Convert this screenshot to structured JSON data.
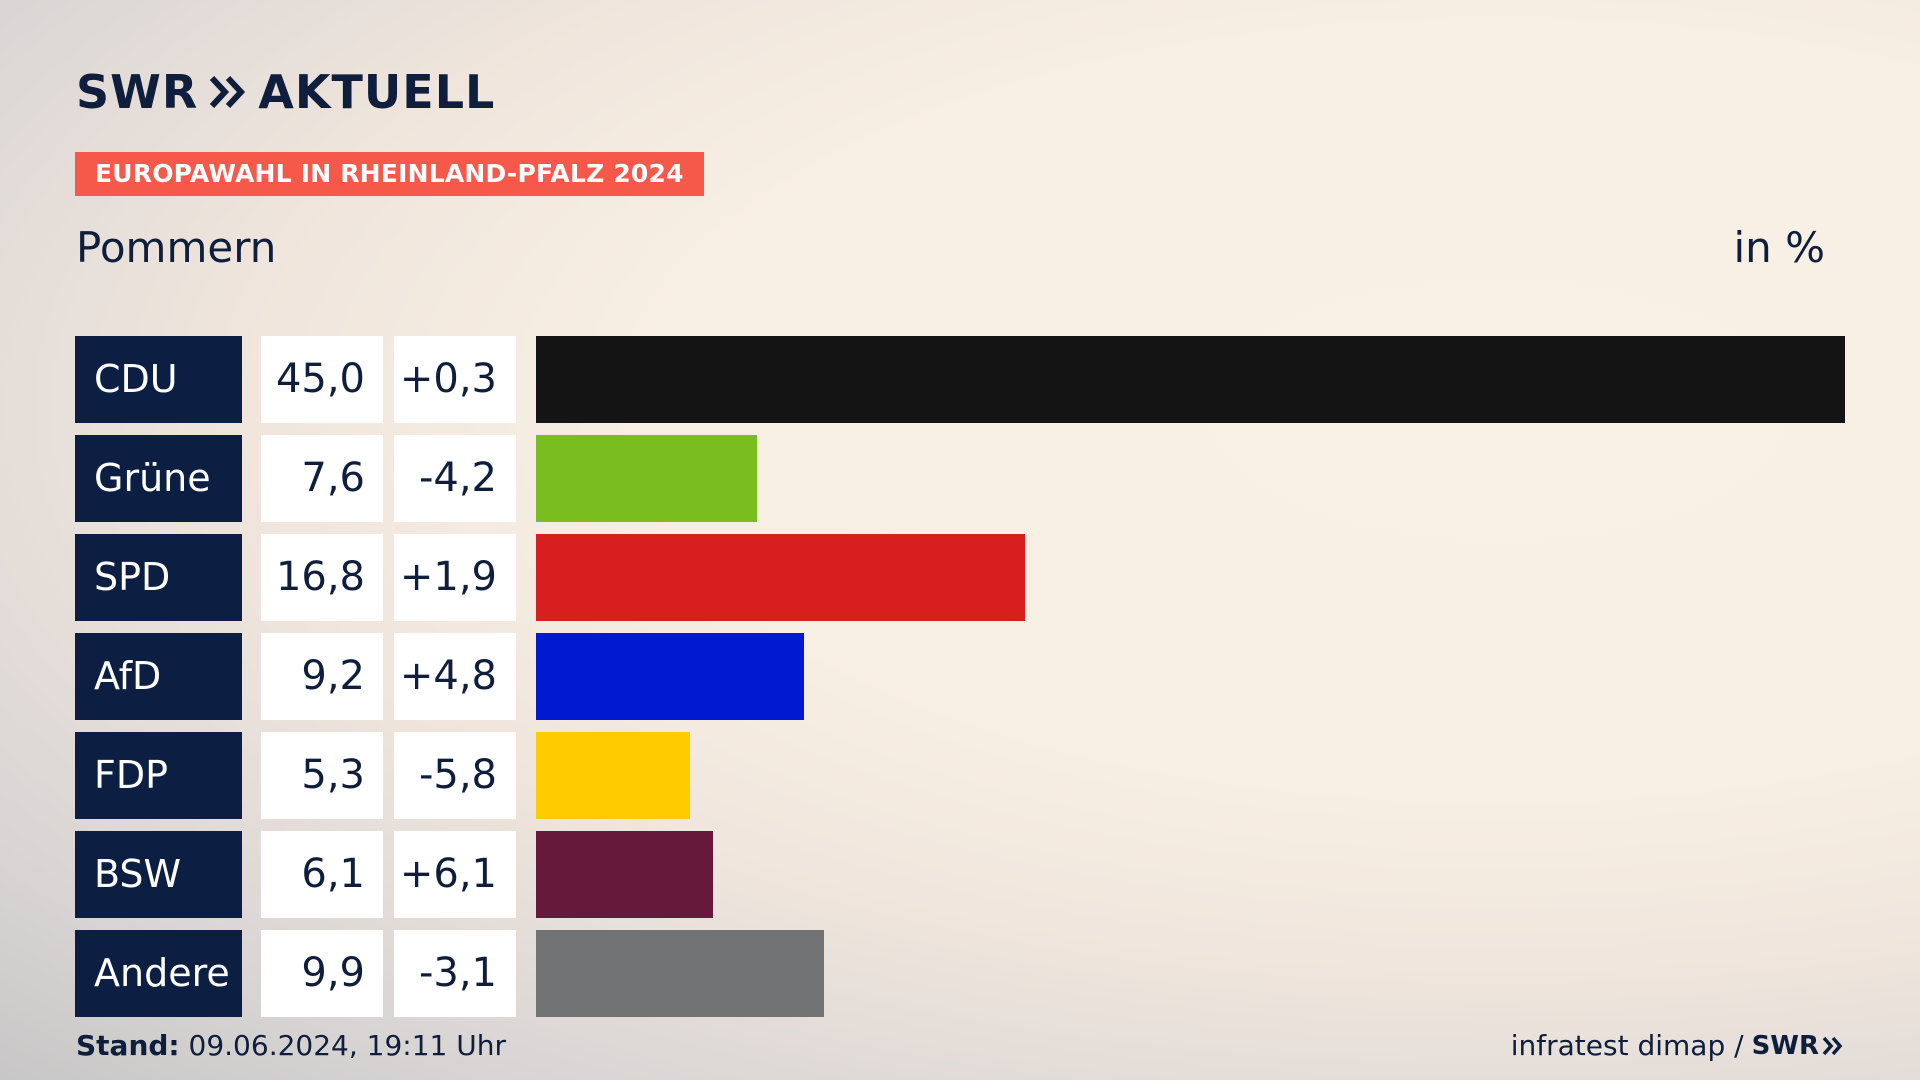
{
  "brand": {
    "logo_text": "SWR",
    "logo_suffix": "AKTUELL"
  },
  "tag": "EUROPAWAHL IN RHEINLAND-PFALZ 2024",
  "region": "Pommern",
  "unit": "in %",
  "chart_data": {
    "type": "bar",
    "title": "Pommern",
    "unit": "in %",
    "categories": [
      "CDU",
      "Grüne",
      "SPD",
      "AfD",
      "FDP",
      "BSW",
      "Andere"
    ],
    "values": [
      45.0,
      7.6,
      16.8,
      9.2,
      5.3,
      6.1,
      9.9
    ],
    "value_labels": [
      "45,0",
      "7,6",
      "16,8",
      "9,2",
      "5,3",
      "6,1",
      "9,9"
    ],
    "changes": [
      "+0,3",
      "-4,2",
      "+1,9",
      "+4,8",
      "-5,8",
      "+6,1",
      "-3,1"
    ],
    "colors": [
      "#141414",
      "#7abd1e",
      "#d71f1f",
      "#0019d1",
      "#ffcc00",
      "#67193c",
      "#717273"
    ],
    "xlim": [
      0,
      45
    ]
  },
  "footer": {
    "stand_label": "Stand:",
    "stand_value": "09.06.2024, 19:11 Uhr",
    "source": "infratest dimap /",
    "source_logo": "SWR"
  }
}
